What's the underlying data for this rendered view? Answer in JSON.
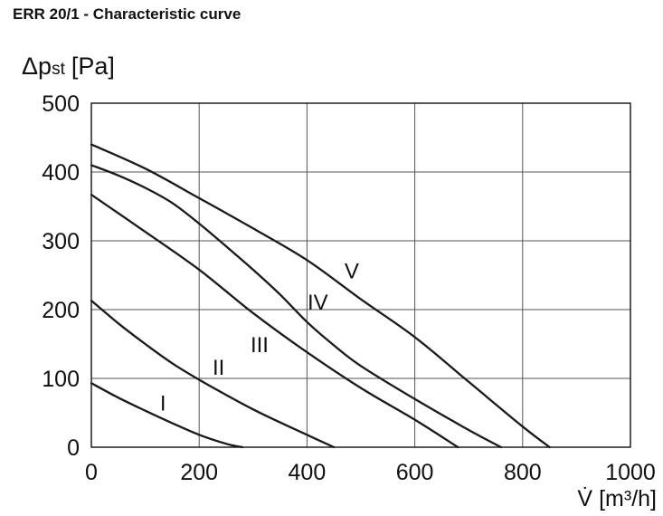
{
  "page": {
    "title": "ERR 20/1 - Characteristic curve"
  },
  "chart_data": {
    "type": "line",
    "title": "ERR 20/1 - Characteristic curve",
    "ylabel": "Δpst [Pa]",
    "ylabel_main": "Δp",
    "ylabel_sub": "st",
    "ylabel_unit": "[Pa]",
    "xlabel": "V̇ [m³/h]",
    "xlabel_main": "V̇",
    "xlabel_unit": "[m³/h]",
    "xlim": [
      0,
      1000
    ],
    "ylim": [
      0,
      500
    ],
    "xticks": [
      0,
      200,
      400,
      600,
      800,
      1000
    ],
    "yticks": [
      0,
      100,
      200,
      300,
      400,
      500
    ],
    "grid": true,
    "line_color": "#1a1a1a",
    "grid_color": "#555555",
    "series": [
      {
        "name": "I",
        "label": "I",
        "points": [
          [
            0,
            93
          ],
          [
            50,
            72
          ],
          [
            100,
            53
          ],
          [
            150,
            35
          ],
          [
            200,
            18
          ],
          [
            250,
            5
          ],
          [
            280,
            0
          ]
        ]
      },
      {
        "name": "II",
        "label": "II",
        "points": [
          [
            0,
            213
          ],
          [
            50,
            180
          ],
          [
            100,
            150
          ],
          [
            150,
            122
          ],
          [
            200,
            98
          ],
          [
            250,
            76
          ],
          [
            300,
            55
          ],
          [
            350,
            36
          ],
          [
            400,
            18
          ],
          [
            450,
            0
          ]
        ]
      },
      {
        "name": "III",
        "label": "III",
        "points": [
          [
            0,
            367
          ],
          [
            100,
            313
          ],
          [
            200,
            258
          ],
          [
            300,
            195
          ],
          [
            400,
            138
          ],
          [
            500,
            86
          ],
          [
            600,
            40
          ],
          [
            680,
            0
          ]
        ]
      },
      {
        "name": "IV",
        "label": "IV",
        "points": [
          [
            0,
            410
          ],
          [
            50,
            395
          ],
          [
            100,
            377
          ],
          [
            150,
            355
          ],
          [
            200,
            325
          ],
          [
            250,
            292
          ],
          [
            300,
            258
          ],
          [
            350,
            222
          ],
          [
            400,
            182
          ],
          [
            450,
            148
          ],
          [
            500,
            118
          ],
          [
            600,
            70
          ],
          [
            700,
            25
          ],
          [
            760,
            0
          ]
        ]
      },
      {
        "name": "V",
        "label": "V",
        "points": [
          [
            0,
            440
          ],
          [
            100,
            405
          ],
          [
            200,
            362
          ],
          [
            300,
            318
          ],
          [
            400,
            272
          ],
          [
            500,
            215
          ],
          [
            600,
            160
          ],
          [
            700,
            95
          ],
          [
            800,
            30
          ],
          [
            850,
            0
          ]
        ]
      }
    ],
    "series_labels": [
      {
        "text": "I",
        "x": 133,
        "y": 65
      },
      {
        "text": "II",
        "x": 236,
        "y": 117
      },
      {
        "text": "III",
        "x": 312,
        "y": 150
      },
      {
        "text": "IV",
        "x": 420,
        "y": 212
      },
      {
        "text": "V",
        "x": 483,
        "y": 257
      }
    ]
  }
}
